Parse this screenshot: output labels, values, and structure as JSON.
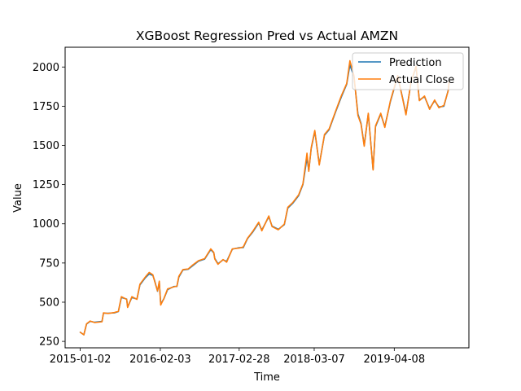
{
  "chart_data": {
    "type": "line",
    "title": "XGBoost Regression Pred vs Actual AMZN",
    "xlabel": "Time",
    "ylabel": "Value",
    "xlim": [
      "2014-10-19",
      "2020-04-12"
    ],
    "ylim": [
      209,
      2126
    ],
    "x_ticks": [
      "2015-01-02",
      "2016-02-03",
      "2017-02-28",
      "2018-03-07",
      "2019-04-08"
    ],
    "y_ticks": [
      250,
      500,
      750,
      1000,
      1250,
      1500,
      1750,
      2000
    ],
    "legend": {
      "position": "upper-right"
    },
    "grid": false,
    "series": [
      {
        "name": "Prediction",
        "color": "#1f77b4",
        "points": [
          [
            "2015-01-02",
            308
          ],
          [
            "2015-01-20",
            292
          ],
          [
            "2015-02-02",
            360
          ],
          [
            "2015-02-20",
            378
          ],
          [
            "2015-03-15",
            372
          ],
          [
            "2015-04-20",
            378
          ],
          [
            "2015-04-27",
            430
          ],
          [
            "2015-05-20",
            430
          ],
          [
            "2015-06-20",
            432
          ],
          [
            "2015-07-10",
            440
          ],
          [
            "2015-07-25",
            530
          ],
          [
            "2015-08-20",
            520
          ],
          [
            "2015-08-25",
            470
          ],
          [
            "2015-09-15",
            530
          ],
          [
            "2015-10-10",
            520
          ],
          [
            "2015-10-25",
            610
          ],
          [
            "2015-11-20",
            655
          ],
          [
            "2015-12-10",
            680
          ],
          [
            "2015-12-28",
            670
          ],
          [
            "2016-01-05",
            640
          ],
          [
            "2016-01-20",
            570
          ],
          [
            "2016-01-29",
            628
          ],
          [
            "2016-02-05",
            490
          ],
          [
            "2016-02-20",
            520
          ],
          [
            "2016-03-10",
            580
          ],
          [
            "2016-04-10",
            600
          ],
          [
            "2016-04-25",
            600
          ],
          [
            "2016-05-05",
            660
          ],
          [
            "2016-05-25",
            705
          ],
          [
            "2016-06-20",
            710
          ],
          [
            "2016-07-10",
            730
          ],
          [
            "2016-08-10",
            762
          ],
          [
            "2016-09-10",
            775
          ],
          [
            "2016-10-10",
            835
          ],
          [
            "2016-10-25",
            815
          ],
          [
            "2016-10-30",
            780
          ],
          [
            "2016-11-15",
            745
          ],
          [
            "2016-12-10",
            770
          ],
          [
            "2016-12-28",
            760
          ],
          [
            "2017-01-25",
            838
          ],
          [
            "2017-02-28",
            848
          ],
          [
            "2017-03-20",
            848
          ],
          [
            "2017-04-10",
            905
          ],
          [
            "2017-05-05",
            945
          ],
          [
            "2017-06-05",
            1005
          ],
          [
            "2017-06-20",
            960
          ],
          [
            "2017-07-25",
            1045
          ],
          [
            "2017-08-10",
            985
          ],
          [
            "2017-09-10",
            965
          ],
          [
            "2017-10-10",
            995
          ],
          [
            "2017-10-27",
            1100
          ],
          [
            "2017-11-20",
            1130
          ],
          [
            "2017-12-20",
            1180
          ],
          [
            "2018-01-10",
            1250
          ],
          [
            "2018-01-30",
            1420
          ],
          [
            "2018-02-08",
            1340
          ],
          [
            "2018-02-20",
            1480
          ],
          [
            "2018-03-10",
            1590
          ],
          [
            "2018-04-01",
            1380
          ],
          [
            "2018-04-27",
            1565
          ],
          [
            "2018-05-20",
            1600
          ],
          [
            "2018-06-20",
            1710
          ],
          [
            "2018-07-20",
            1810
          ],
          [
            "2018-08-15",
            1890
          ],
          [
            "2018-08-31",
            2012
          ],
          [
            "2018-09-20",
            1940
          ],
          [
            "2018-10-10",
            1700
          ],
          [
            "2018-10-25",
            1640
          ],
          [
            "2018-11-10",
            1500
          ],
          [
            "2018-11-30",
            1700
          ],
          [
            "2018-12-24",
            1345
          ],
          [
            "2019-01-05",
            1620
          ],
          [
            "2019-01-31",
            1700
          ],
          [
            "2019-02-20",
            1620
          ],
          [
            "2019-03-20",
            1780
          ],
          [
            "2019-04-25",
            1940
          ],
          [
            "2019-05-20",
            1800
          ],
          [
            "2019-06-05",
            1700
          ],
          [
            "2019-06-30",
            1900
          ],
          [
            "2019-07-25",
            2000
          ],
          [
            "2019-08-10",
            1790
          ],
          [
            "2019-09-05",
            1810
          ],
          [
            "2019-09-30",
            1735
          ],
          [
            "2019-10-25",
            1785
          ],
          [
            "2019-11-15",
            1745
          ],
          [
            "2019-12-10",
            1750
          ],
          [
            "2019-12-31",
            1850
          ],
          [
            "2020-01-05",
            1902
          ]
        ]
      },
      {
        "name": "Actual Close",
        "color": "#ff7f0e",
        "points": [
          [
            "2015-01-02",
            308
          ],
          [
            "2015-01-20",
            292
          ],
          [
            "2015-02-02",
            362
          ],
          [
            "2015-02-20",
            380
          ],
          [
            "2015-03-15",
            370
          ],
          [
            "2015-04-20",
            375
          ],
          [
            "2015-04-27",
            432
          ],
          [
            "2015-05-20",
            428
          ],
          [
            "2015-06-20",
            434
          ],
          [
            "2015-07-10",
            442
          ],
          [
            "2015-07-25",
            535
          ],
          [
            "2015-08-20",
            518
          ],
          [
            "2015-08-25",
            466
          ],
          [
            "2015-09-15",
            535
          ],
          [
            "2015-10-10",
            518
          ],
          [
            "2015-10-25",
            615
          ],
          [
            "2015-11-20",
            660
          ],
          [
            "2015-12-10",
            690
          ],
          [
            "2015-12-28",
            675
          ],
          [
            "2016-01-05",
            636
          ],
          [
            "2016-01-20",
            572
          ],
          [
            "2016-01-29",
            634
          ],
          [
            "2016-02-05",
            482
          ],
          [
            "2016-02-20",
            522
          ],
          [
            "2016-03-10",
            585
          ],
          [
            "2016-04-10",
            598
          ],
          [
            "2016-04-25",
            602
          ],
          [
            "2016-05-05",
            665
          ],
          [
            "2016-05-25",
            708
          ],
          [
            "2016-06-20",
            712
          ],
          [
            "2016-07-10",
            735
          ],
          [
            "2016-08-10",
            765
          ],
          [
            "2016-09-10",
            778
          ],
          [
            "2016-10-10",
            840
          ],
          [
            "2016-10-25",
            818
          ],
          [
            "2016-10-30",
            776
          ],
          [
            "2016-11-15",
            742
          ],
          [
            "2016-12-10",
            772
          ],
          [
            "2016-12-28",
            755
          ],
          [
            "2017-01-25",
            840
          ],
          [
            "2017-02-28",
            845
          ],
          [
            "2017-03-20",
            852
          ],
          [
            "2017-04-10",
            908
          ],
          [
            "2017-05-05",
            950
          ],
          [
            "2017-06-05",
            1010
          ],
          [
            "2017-06-20",
            955
          ],
          [
            "2017-07-25",
            1050
          ],
          [
            "2017-08-10",
            982
          ],
          [
            "2017-09-10",
            962
          ],
          [
            "2017-10-10",
            998
          ],
          [
            "2017-10-27",
            1105
          ],
          [
            "2017-11-20",
            1135
          ],
          [
            "2017-12-20",
            1185
          ],
          [
            "2018-01-10",
            1255
          ],
          [
            "2018-01-30",
            1450
          ],
          [
            "2018-02-08",
            1335
          ],
          [
            "2018-02-20",
            1485
          ],
          [
            "2018-03-10",
            1595
          ],
          [
            "2018-04-01",
            1375
          ],
          [
            "2018-04-27",
            1570
          ],
          [
            "2018-05-20",
            1605
          ],
          [
            "2018-06-20",
            1715
          ],
          [
            "2018-07-20",
            1818
          ],
          [
            "2018-08-15",
            1895
          ],
          [
            "2018-08-31",
            2040
          ],
          [
            "2018-09-20",
            1945
          ],
          [
            "2018-10-10",
            1690
          ],
          [
            "2018-10-25",
            1635
          ],
          [
            "2018-11-10",
            1495
          ],
          [
            "2018-11-30",
            1705
          ],
          [
            "2018-12-24",
            1343
          ],
          [
            "2019-01-05",
            1625
          ],
          [
            "2019-01-31",
            1705
          ],
          [
            "2019-02-20",
            1615
          ],
          [
            "2019-03-20",
            1785
          ],
          [
            "2019-04-25",
            1945
          ],
          [
            "2019-05-20",
            1795
          ],
          [
            "2019-06-05",
            1695
          ],
          [
            "2019-06-30",
            1905
          ],
          [
            "2019-07-25",
            2005
          ],
          [
            "2019-08-10",
            1785
          ],
          [
            "2019-09-05",
            1815
          ],
          [
            "2019-09-30",
            1730
          ],
          [
            "2019-10-25",
            1790
          ],
          [
            "2019-11-15",
            1740
          ],
          [
            "2019-12-10",
            1755
          ],
          [
            "2019-12-31",
            1847
          ],
          [
            "2020-01-05",
            1905
          ]
        ]
      }
    ]
  }
}
